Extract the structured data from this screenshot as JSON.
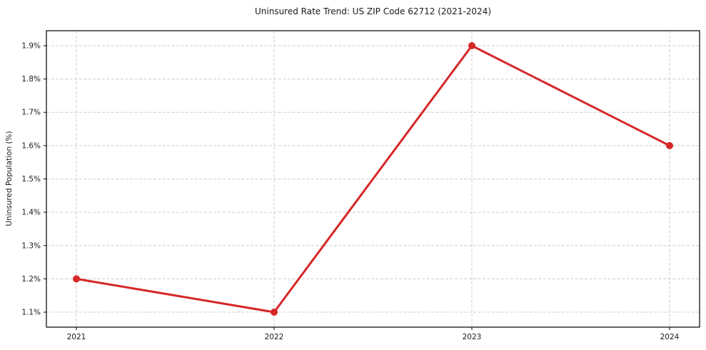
{
  "chart_data": {
    "type": "line",
    "title": "Uninsured Rate Trend: US ZIP Code 62712 (2021-2024)",
    "xlabel": "",
    "ylabel": "Uninsured Population (%)",
    "categories": [
      "2021",
      "2022",
      "2023",
      "2024"
    ],
    "series": [
      {
        "name": "Uninsured Rate",
        "values": [
          1.2,
          1.1,
          1.9,
          1.6
        ]
      }
    ],
    "y_ticks": [
      1.1,
      1.2,
      1.3,
      1.4,
      1.5,
      1.6,
      1.7,
      1.8,
      1.9
    ],
    "y_tick_labels": [
      "1.1%",
      "1.2%",
      "1.3%",
      "1.4%",
      "1.5%",
      "1.6%",
      "1.7%",
      "1.8%",
      "1.9%"
    ],
    "ylim": [
      1.055,
      1.945
    ],
    "grid": true,
    "legend_position": "none",
    "colors": {
      "line": "#d62728",
      "marker": "#d62728",
      "grid": "#cccccc",
      "spine": "#000000",
      "text": "#1a1a1a",
      "background": "#ffffff"
    }
  }
}
